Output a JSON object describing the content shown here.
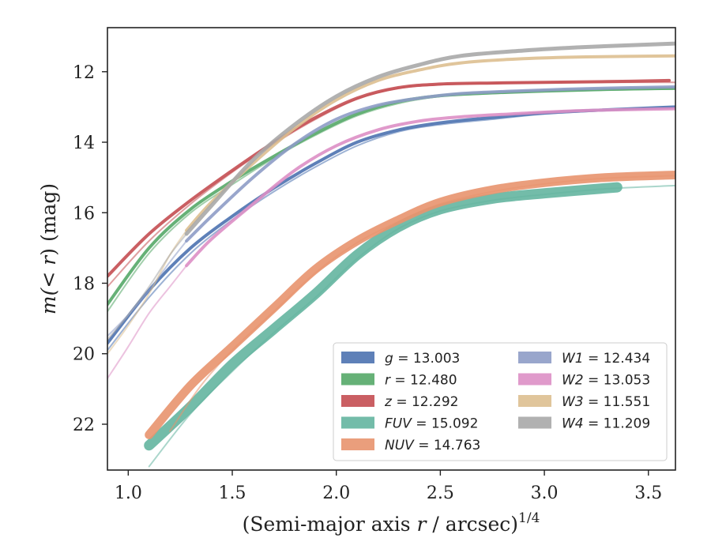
{
  "chart_data": {
    "type": "line",
    "xlabel_prefix": "(Semi-major axis ",
    "xlabel_var": "r",
    "xlabel_suffix": " / arcsec)",
    "xlabel_exp": "1/4",
    "ylabel_prefix": "m(< ",
    "ylabel_var": "r",
    "ylabel_suffix": ") (mag)",
    "xlim": [
      0.9,
      3.63
    ],
    "ylim": [
      23.3,
      10.75
    ],
    "y_inverted": true,
    "xticks": [
      1.0,
      1.5,
      2.0,
      2.5,
      3.0,
      3.5
    ],
    "xtick_labels": [
      "1.0",
      "1.5",
      "2.0",
      "2.5",
      "3.0",
      "3.5"
    ],
    "yticks": [
      12,
      14,
      16,
      18,
      20,
      22
    ],
    "ytick_labels": [
      "12",
      "14",
      "16",
      "18",
      "20",
      "22"
    ],
    "grid": false,
    "legend_position": "lower-right",
    "legend_columns": 2,
    "series": [
      {
        "name": "g",
        "value_label": "13.003",
        "color": "#4c72b0",
        "band": [
          [
            0.9,
            19.7
          ],
          [
            1.1,
            18.2
          ],
          [
            1.3,
            17.0
          ],
          [
            1.5,
            16.1
          ],
          [
            1.7,
            15.3
          ],
          [
            1.9,
            14.6
          ],
          [
            2.1,
            14.0
          ],
          [
            2.3,
            13.65
          ],
          [
            2.5,
            13.45
          ],
          [
            2.75,
            13.3
          ],
          [
            3.0,
            13.17
          ],
          [
            3.3,
            13.08
          ],
          [
            3.63,
            13.0
          ]
        ],
        "width": 4,
        "faint": [
          [
            0.9,
            19.9
          ],
          [
            1.1,
            18.4
          ],
          [
            1.3,
            17.15
          ],
          [
            1.5,
            16.2
          ],
          [
            1.7,
            15.4
          ],
          [
            1.9,
            14.7
          ],
          [
            2.1,
            14.1
          ],
          [
            2.3,
            13.7
          ],
          [
            2.5,
            13.5
          ],
          [
            2.75,
            13.35
          ],
          [
            3.0,
            13.2
          ],
          [
            3.3,
            13.1
          ],
          [
            3.63,
            13.02
          ]
        ]
      },
      {
        "name": "r",
        "value_label": "12.480",
        "color": "#55a868",
        "band": [
          [
            0.9,
            18.6
          ],
          [
            1.1,
            17.0
          ],
          [
            1.3,
            15.9
          ],
          [
            1.5,
            15.1
          ],
          [
            1.7,
            14.4
          ],
          [
            1.9,
            13.75
          ],
          [
            2.1,
            13.2
          ],
          [
            2.3,
            12.85
          ],
          [
            2.5,
            12.68
          ],
          [
            2.75,
            12.6
          ],
          [
            3.0,
            12.55
          ],
          [
            3.3,
            12.5
          ],
          [
            3.63,
            12.47
          ]
        ],
        "width": 4,
        "faint": [
          [
            0.9,
            18.8
          ],
          [
            1.1,
            17.15
          ],
          [
            1.3,
            16.0
          ],
          [
            1.5,
            15.2
          ],
          [
            1.7,
            14.45
          ],
          [
            1.9,
            13.8
          ],
          [
            2.1,
            13.25
          ],
          [
            2.3,
            12.9
          ],
          [
            2.5,
            12.7
          ],
          [
            2.75,
            12.62
          ],
          [
            3.0,
            12.56
          ],
          [
            3.3,
            12.52
          ],
          [
            3.63,
            12.49
          ]
        ]
      },
      {
        "name": "z",
        "value_label": "12.292",
        "color": "#c44e52",
        "band": [
          [
            0.9,
            17.8
          ],
          [
            1.1,
            16.6
          ],
          [
            1.3,
            15.65
          ],
          [
            1.5,
            14.8
          ],
          [
            1.7,
            14.0
          ],
          [
            1.9,
            13.3
          ],
          [
            2.1,
            12.75
          ],
          [
            2.3,
            12.45
          ],
          [
            2.5,
            12.35
          ],
          [
            2.75,
            12.32
          ],
          [
            3.0,
            12.3
          ],
          [
            3.3,
            12.28
          ],
          [
            3.6,
            12.25
          ]
        ],
        "width": 4,
        "faint": [
          [
            0.9,
            18.1
          ],
          [
            1.1,
            16.8
          ],
          [
            1.3,
            15.75
          ],
          [
            1.5,
            14.85
          ],
          [
            1.7,
            14.05
          ],
          [
            1.9,
            13.35
          ],
          [
            2.1,
            12.78
          ],
          [
            2.3,
            12.47
          ],
          [
            2.5,
            12.37
          ],
          [
            2.75,
            12.33
          ],
          [
            3.0,
            12.31
          ],
          [
            3.3,
            12.3
          ],
          [
            3.63,
            12.3
          ]
        ]
      },
      {
        "name": "FUV",
        "value_label": "15.092",
        "color": "#64b5a0",
        "band": [
          [
            1.1,
            22.6
          ],
          [
            1.3,
            21.5
          ],
          [
            1.5,
            20.3
          ],
          [
            1.7,
            19.3
          ],
          [
            1.9,
            18.3
          ],
          [
            2.1,
            17.2
          ],
          [
            2.3,
            16.4
          ],
          [
            2.5,
            15.9
          ],
          [
            2.75,
            15.6
          ],
          [
            3.0,
            15.45
          ],
          [
            3.35,
            15.28
          ]
        ],
        "width": 13,
        "faint": [
          [
            1.1,
            23.2
          ],
          [
            1.3,
            21.7
          ],
          [
            1.5,
            20.5
          ],
          [
            1.7,
            19.4
          ],
          [
            1.9,
            18.4
          ],
          [
            2.1,
            17.3
          ],
          [
            2.3,
            16.45
          ],
          [
            2.5,
            15.95
          ],
          [
            2.75,
            15.65
          ],
          [
            3.0,
            15.48
          ],
          [
            3.3,
            15.32
          ],
          [
            3.63,
            15.23
          ]
        ]
      },
      {
        "name": "NUV",
        "value_label": "14.763",
        "color": "#e8946e",
        "band": [
          [
            1.1,
            22.3
          ],
          [
            1.3,
            20.9
          ],
          [
            1.5,
            19.8
          ],
          [
            1.7,
            18.7
          ],
          [
            1.9,
            17.6
          ],
          [
            2.1,
            16.8
          ],
          [
            2.3,
            16.2
          ],
          [
            2.5,
            15.7
          ],
          [
            2.75,
            15.35
          ],
          [
            3.0,
            15.15
          ],
          [
            3.3,
            15.0
          ],
          [
            3.63,
            14.93
          ]
        ],
        "width": 11,
        "faint": [
          [
            1.2,
            22.2
          ],
          [
            1.35,
            20.9
          ],
          [
            1.5,
            19.9
          ],
          [
            1.7,
            18.8
          ],
          [
            1.9,
            17.7
          ],
          [
            2.1,
            16.85
          ],
          [
            2.3,
            16.25
          ],
          [
            2.5,
            15.75
          ],
          [
            2.75,
            15.4
          ],
          [
            3.0,
            15.18
          ],
          [
            3.3,
            15.02
          ],
          [
            3.63,
            14.95
          ]
        ]
      },
      {
        "name": "W1",
        "value_label": "12.434",
        "color": "#8e9cc7",
        "band": [
          [
            1.28,
            16.8
          ],
          [
            1.4,
            16.1
          ],
          [
            1.6,
            15.0
          ],
          [
            1.8,
            14.05
          ],
          [
            2.0,
            13.35
          ],
          [
            2.2,
            12.95
          ],
          [
            2.4,
            12.75
          ],
          [
            2.6,
            12.62
          ],
          [
            2.9,
            12.54
          ],
          [
            3.2,
            12.48
          ],
          [
            3.63,
            12.43
          ]
        ],
        "width": 4,
        "faint": [
          [
            0.9,
            19.5
          ],
          [
            1.0,
            18.9
          ],
          [
            1.1,
            18.2
          ],
          [
            1.2,
            17.4
          ],
          [
            1.28,
            16.8
          ]
        ]
      },
      {
        "name": "W2",
        "value_label": "13.053",
        "color": "#dd8fc5",
        "band": [
          [
            1.28,
            17.5
          ],
          [
            1.4,
            16.75
          ],
          [
            1.6,
            15.75
          ],
          [
            1.8,
            14.8
          ],
          [
            2.0,
            14.1
          ],
          [
            2.2,
            13.65
          ],
          [
            2.4,
            13.4
          ],
          [
            2.6,
            13.28
          ],
          [
            2.9,
            13.18
          ],
          [
            3.2,
            13.1
          ],
          [
            3.63,
            13.05
          ]
        ],
        "width": 4,
        "faint": [
          [
            0.9,
            20.7
          ],
          [
            1.0,
            19.8
          ],
          [
            1.1,
            18.85
          ],
          [
            1.2,
            18.1
          ],
          [
            1.28,
            17.5
          ]
        ]
      },
      {
        "name": "W3",
        "value_label": "11.551",
        "color": "#ddbf90",
        "band": [
          [
            1.28,
            16.5
          ],
          [
            1.4,
            15.7
          ],
          [
            1.6,
            14.6
          ],
          [
            1.8,
            13.6
          ],
          [
            2.0,
            12.8
          ],
          [
            2.2,
            12.25
          ],
          [
            2.4,
            11.95
          ],
          [
            2.6,
            11.75
          ],
          [
            2.9,
            11.63
          ],
          [
            3.2,
            11.58
          ],
          [
            3.63,
            11.55
          ]
        ],
        "width": 4,
        "faint": [
          [
            0.9,
            20.0
          ],
          [
            1.0,
            19.2
          ],
          [
            1.1,
            18.3
          ],
          [
            1.2,
            17.2
          ],
          [
            1.28,
            16.5
          ]
        ]
      },
      {
        "name": "W4",
        "value_label": "11.209",
        "color": "#a8a8a8",
        "band": [
          [
            1.28,
            16.6
          ],
          [
            1.4,
            15.8
          ],
          [
            1.6,
            14.5
          ],
          [
            1.8,
            13.5
          ],
          [
            2.0,
            12.7
          ],
          [
            2.2,
            12.15
          ],
          [
            2.4,
            11.8
          ],
          [
            2.6,
            11.55
          ],
          [
            2.9,
            11.4
          ],
          [
            3.2,
            11.3
          ],
          [
            3.63,
            11.2
          ]
        ],
        "width": 5,
        "faint": [
          [
            0.9,
            19.6
          ],
          [
            1.0,
            18.9
          ],
          [
            1.1,
            18.1
          ],
          [
            1.2,
            17.2
          ],
          [
            1.28,
            16.6
          ]
        ]
      }
    ],
    "legend_equals": " = "
  }
}
